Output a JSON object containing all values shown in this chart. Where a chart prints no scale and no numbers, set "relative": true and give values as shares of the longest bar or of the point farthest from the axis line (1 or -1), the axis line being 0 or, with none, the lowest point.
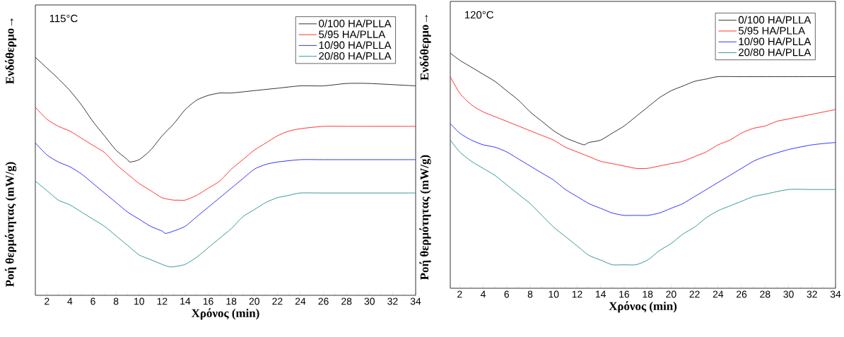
{
  "chart_data": [
    {
      "type": "line",
      "title": "115°C",
      "xlabel": "Χρόνος (min)",
      "ylabel": "Ροή θερμότητας (mW/g)",
      "annotations": [
        "Ενδόθερμο→"
      ],
      "relative": true,
      "xlim": [
        1,
        34
      ],
      "xticks": [
        2,
        4,
        6,
        8,
        10,
        12,
        14,
        16,
        18,
        20,
        22,
        24,
        26,
        28,
        30,
        32,
        34
      ],
      "legend": "top right",
      "tick_labels": "x",
      "series": [
        {
          "name": "0/100 HA/PLLA",
          "color": "#000000",
          "x": [
            1,
            2,
            3,
            4,
            5,
            6,
            7,
            8,
            9,
            9.2,
            10,
            11,
            12,
            13,
            14,
            15,
            16,
            17,
            18,
            20,
            22,
            24,
            26,
            28,
            30,
            34
          ],
          "values": [
            1.0,
            0.955,
            0.91,
            0.86,
            0.8,
            0.73,
            0.67,
            0.61,
            0.57,
            0.56,
            0.57,
            0.61,
            0.67,
            0.72,
            0.78,
            0.82,
            0.84,
            0.85,
            0.85,
            0.86,
            0.87,
            0.88,
            0.88,
            0.89,
            0.89,
            0.88
          ]
        },
        {
          "name": "5/95 HA/PLLA",
          "color": "#ff0000",
          "x": [
            1,
            2,
            3,
            4,
            5,
            6,
            7,
            8,
            9,
            10,
            11,
            12,
            13,
            13.4,
            14,
            15,
            16,
            17,
            18,
            19,
            20,
            21,
            22,
            23,
            24,
            26,
            28,
            34
          ],
          "values": [
            0.79,
            0.74,
            0.71,
            0.69,
            0.66,
            0.63,
            0.6,
            0.55,
            0.51,
            0.47,
            0.44,
            0.41,
            0.4,
            0.4,
            0.4,
            0.42,
            0.45,
            0.48,
            0.53,
            0.57,
            0.61,
            0.64,
            0.67,
            0.69,
            0.7,
            0.71,
            0.71,
            0.71
          ]
        },
        {
          "name": "10/90 HA/PLLA",
          "color": "#0000ff",
          "x": [
            1,
            2,
            3,
            4,
            5,
            6,
            7,
            8,
            9,
            10,
            11,
            12,
            12.3,
            13,
            14,
            15,
            16,
            17,
            18,
            19,
            20,
            21,
            22,
            24,
            26,
            34
          ],
          "values": [
            0.64,
            0.59,
            0.56,
            0.54,
            0.51,
            0.47,
            0.43,
            0.39,
            0.35,
            0.32,
            0.29,
            0.27,
            0.26,
            0.27,
            0.29,
            0.33,
            0.37,
            0.41,
            0.45,
            0.49,
            0.53,
            0.55,
            0.56,
            0.57,
            0.57,
            0.57
          ]
        },
        {
          "name": "20/80 HA/PLLA",
          "color": "#008080",
          "x": [
            1,
            2,
            3,
            4,
            5,
            6,
            7,
            8,
            9,
            10,
            11,
            12,
            12.6,
            13,
            14,
            15,
            16,
            17,
            18,
            19,
            20,
            21,
            22,
            23,
            24,
            26,
            34
          ],
          "values": [
            0.48,
            0.44,
            0.4,
            0.38,
            0.35,
            0.32,
            0.29,
            0.25,
            0.21,
            0.17,
            0.15,
            0.13,
            0.12,
            0.12,
            0.13,
            0.16,
            0.2,
            0.24,
            0.28,
            0.33,
            0.36,
            0.39,
            0.41,
            0.42,
            0.43,
            0.43,
            0.43
          ]
        }
      ]
    },
    {
      "type": "line",
      "title": "120°C",
      "xlabel": "Χρόνος (min)",
      "ylabel": "Ροή θερμότητας (mW/g)",
      "annotations": [
        "Ενδόθερμο→"
      ],
      "relative": true,
      "xlim": [
        1.2,
        34
      ],
      "xticks": [
        2,
        4,
        6,
        8,
        10,
        12,
        14,
        16,
        18,
        20,
        22,
        24,
        26,
        28,
        30,
        32,
        34
      ],
      "legend": "top right",
      "tick_labels": "x",
      "series": [
        {
          "name": "0/100 HA/PLLA",
          "color": "#000000",
          "x": [
            1.2,
            2,
            3,
            4,
            5,
            6,
            7,
            8,
            9,
            10,
            11,
            12,
            12.6,
            13,
            14,
            15,
            16,
            17,
            18,
            19,
            20,
            21,
            22,
            23,
            24,
            26,
            28,
            30,
            34
          ],
          "values": [
            1.0,
            0.97,
            0.94,
            0.91,
            0.88,
            0.84,
            0.8,
            0.75,
            0.71,
            0.67,
            0.64,
            0.62,
            0.61,
            0.62,
            0.63,
            0.66,
            0.69,
            0.73,
            0.77,
            0.81,
            0.84,
            0.86,
            0.88,
            0.89,
            0.9,
            0.9,
            0.9,
            0.9,
            0.9
          ]
        },
        {
          "name": "5/95 HA/PLLA",
          "color": "#ff0000",
          "x": [
            1.2,
            2,
            3,
            4,
            5,
            6,
            7,
            8,
            9,
            10,
            11,
            12,
            13,
            14,
            15,
            16,
            17,
            18,
            19,
            20,
            21,
            22,
            23,
            24,
            25,
            26,
            27,
            28,
            29,
            30,
            32,
            34
          ],
          "values": [
            0.9,
            0.83,
            0.78,
            0.75,
            0.73,
            0.71,
            0.69,
            0.67,
            0.65,
            0.63,
            0.6,
            0.58,
            0.56,
            0.54,
            0.53,
            0.52,
            0.51,
            0.51,
            0.52,
            0.53,
            0.54,
            0.56,
            0.58,
            0.61,
            0.63,
            0.66,
            0.68,
            0.69,
            0.71,
            0.72,
            0.74,
            0.76
          ]
        },
        {
          "name": "10/90 HA/PLLA",
          "color": "#0000ff",
          "x": [
            1.2,
            2,
            3,
            4,
            5,
            6,
            7,
            8,
            9,
            10,
            11,
            12,
            13,
            14,
            15,
            16,
            17,
            18,
            19,
            20,
            21,
            22,
            23,
            24,
            25,
            26,
            27,
            28,
            30,
            32,
            34
          ],
          "values": [
            0.7,
            0.66,
            0.63,
            0.61,
            0.6,
            0.58,
            0.55,
            0.52,
            0.49,
            0.46,
            0.42,
            0.39,
            0.36,
            0.34,
            0.32,
            0.31,
            0.31,
            0.31,
            0.32,
            0.34,
            0.36,
            0.39,
            0.42,
            0.45,
            0.48,
            0.51,
            0.54,
            0.56,
            0.59,
            0.61,
            0.62
          ]
        },
        {
          "name": "20/80 HA/PLLA",
          "color": "#008080",
          "x": [
            1.2,
            2,
            3,
            4,
            5,
            6,
            7,
            8,
            9,
            10,
            11,
            12,
            13,
            14,
            15,
            16,
            17,
            18,
            19,
            20,
            21,
            22,
            23,
            24,
            25,
            26,
            27,
            28,
            30,
            32,
            34
          ],
          "values": [
            0.63,
            0.58,
            0.54,
            0.51,
            0.48,
            0.44,
            0.4,
            0.36,
            0.31,
            0.26,
            0.22,
            0.18,
            0.14,
            0.12,
            0.1,
            0.1,
            0.1,
            0.12,
            0.16,
            0.19,
            0.23,
            0.26,
            0.3,
            0.33,
            0.35,
            0.37,
            0.39,
            0.4,
            0.42,
            0.42,
            0.42
          ]
        }
      ]
    }
  ]
}
